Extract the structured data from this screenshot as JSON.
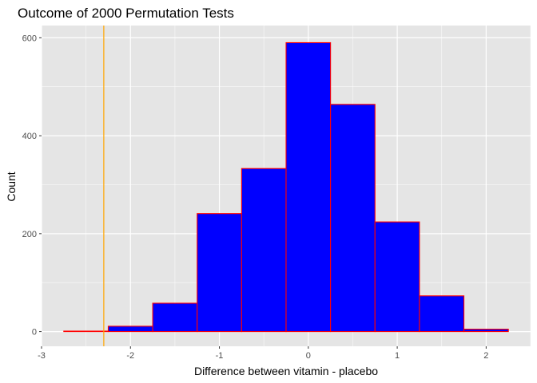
{
  "chart_data": {
    "type": "bar",
    "title": "Outcome of 2000 Permutation Tests",
    "xlabel": "Difference between vitamin - placebo",
    "ylabel": "Count",
    "xlim": [
      -3,
      2.5
    ],
    "ylim": [
      -30,
      625
    ],
    "x_ticks": [
      -3,
      -2,
      -1,
      0,
      1,
      2
    ],
    "x_tick_labels": [
      "-3",
      "-2",
      "-1",
      "0",
      "1",
      "2"
    ],
    "y_ticks": [
      0,
      200,
      400,
      600
    ],
    "y_tick_labels": [
      "0",
      "200",
      "400",
      "600"
    ],
    "bin_width": 0.5,
    "bins": [
      {
        "x0": -2.75,
        "x1": -2.25,
        "count": 1
      },
      {
        "x0": -2.25,
        "x1": -1.75,
        "count": 11
      },
      {
        "x0": -1.75,
        "x1": -1.25,
        "count": 58
      },
      {
        "x0": -1.25,
        "x1": -0.75,
        "count": 241
      },
      {
        "x0": -0.75,
        "x1": -0.25,
        "count": 333
      },
      {
        "x0": -0.25,
        "x1": 0.25,
        "count": 590
      },
      {
        "x0": 0.25,
        "x1": 0.75,
        "count": 464
      },
      {
        "x0": 0.75,
        "x1": 1.25,
        "count": 224
      },
      {
        "x0": 1.25,
        "x1": 1.75,
        "count": 73
      },
      {
        "x0": 1.75,
        "x1": 2.25,
        "count": 5
      }
    ],
    "reference_line": {
      "x": -2.3,
      "color": "#ffa500"
    },
    "fill_color": "#0000ff",
    "edge_color": "#ff0000",
    "panel_background": "#e5e5e5",
    "grid": true,
    "grid_color": "#ffffff",
    "legend": "none"
  }
}
